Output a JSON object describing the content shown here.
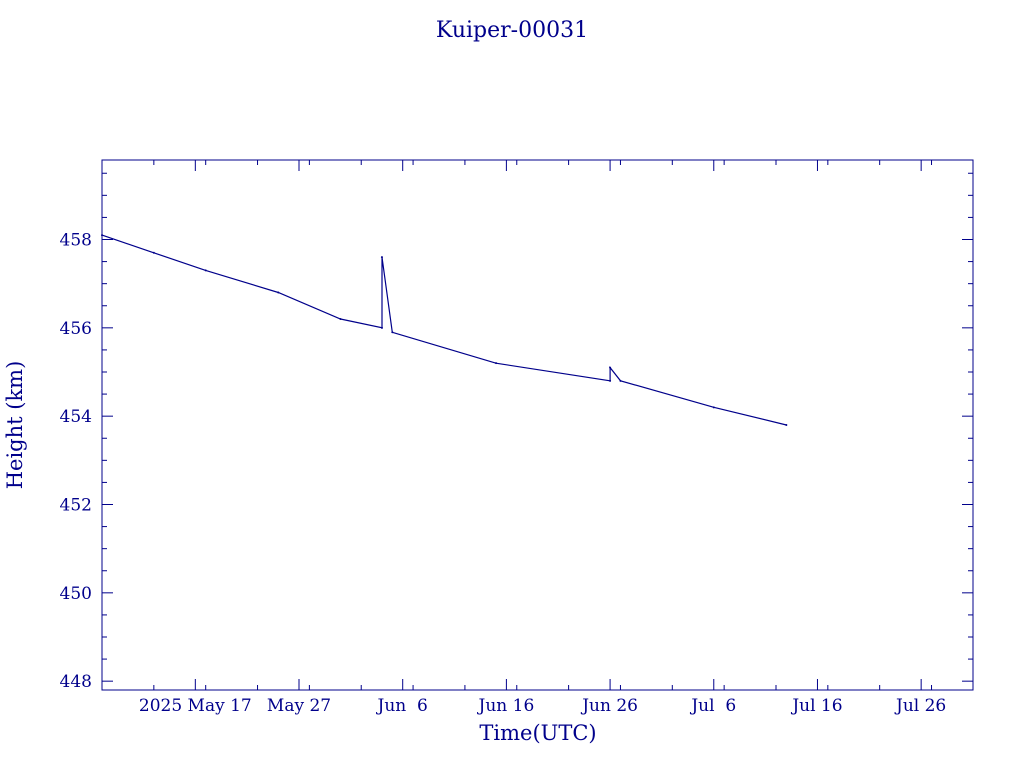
{
  "chart_data": {
    "type": "line",
    "title": "Kuiper-00031",
    "xlabel": "Time(UTC)",
    "ylabel": "Height (km)",
    "x_axis_type": "date",
    "xlim": [
      "2025-05-08",
      "2025-07-31"
    ],
    "ylim": [
      447.8,
      459.8
    ],
    "x_ticks": [
      "2025-05-17",
      "2025-05-27",
      "2025-06-06",
      "2025-06-16",
      "2025-06-26",
      "2025-07-06",
      "2025-07-16",
      "2025-07-26"
    ],
    "x_tick_labels": [
      "2025 May 17",
      "May 27",
      "Jun  6",
      "Jun 16",
      "Jun 26",
      "Jul  6",
      "Jul 16",
      "Jul 26"
    ],
    "y_ticks": [
      448,
      450,
      452,
      454,
      456,
      458
    ],
    "y_tick_labels": [
      "448",
      "450",
      "452",
      "454",
      "456",
      "458"
    ],
    "grid": false,
    "color": "#00008b",
    "series": [
      {
        "x": [
          "2025-05-08",
          "2025-05-13",
          "2025-05-18",
          "2025-05-25",
          "2025-05-31",
          "2025-06-04",
          "2025-06-04",
          "2025-06-05",
          "2025-06-15",
          "2025-06-26",
          "2025-06-26",
          "2025-06-27",
          "2025-07-06",
          "2025-07-13"
        ],
        "y": [
          458.1,
          457.7,
          457.3,
          456.8,
          456.2,
          456.0,
          457.6,
          455.9,
          455.2,
          454.8,
          455.1,
          454.8,
          454.2,
          453.8
        ]
      }
    ]
  }
}
